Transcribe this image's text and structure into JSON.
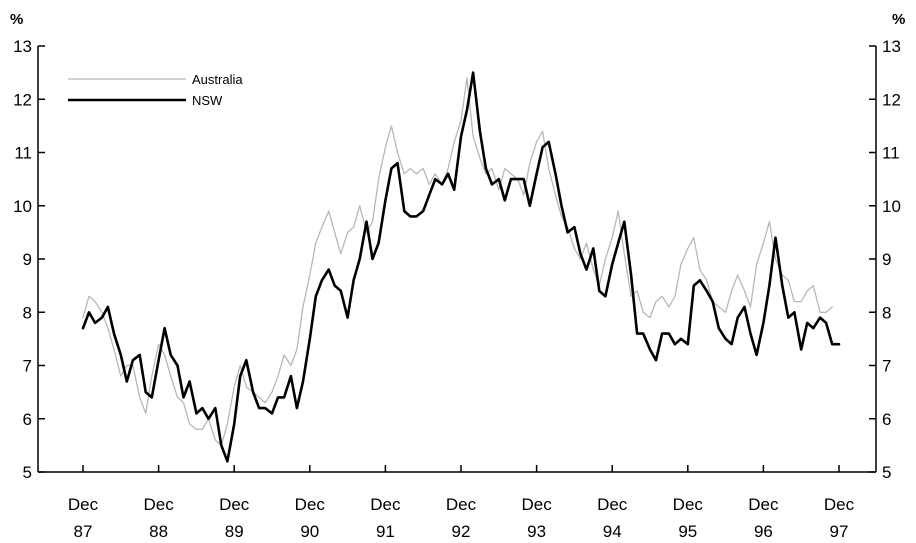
{
  "chart_data": {
    "type": "line",
    "title": "",
    "xlabel": "",
    "ylabel": "",
    "y_unit_left": "%",
    "y_unit_right": "%",
    "ylim": [
      5,
      13
    ],
    "y_ticks": [
      5,
      6,
      7,
      8,
      9,
      10,
      11,
      12,
      13
    ],
    "x_ticks": [
      {
        "month": "Dec",
        "year": "87",
        "x": 1987.92
      },
      {
        "month": "Dec",
        "year": "88",
        "x": 1988.92
      },
      {
        "month": "Dec",
        "year": "89",
        "x": 1989.92
      },
      {
        "month": "Dec",
        "year": "90",
        "x": 1990.92
      },
      {
        "month": "Dec",
        "year": "91",
        "x": 1991.92
      },
      {
        "month": "Dec",
        "year": "92",
        "x": 1992.92
      },
      {
        "month": "Dec",
        "year": "93",
        "x": 1993.92
      },
      {
        "month": "Dec",
        "year": "94",
        "x": 1994.92
      },
      {
        "month": "Dec",
        "year": "95",
        "x": 1995.92
      },
      {
        "month": "Dec",
        "year": "96",
        "x": 1996.92
      },
      {
        "month": "Dec",
        "year": "97",
        "x": 1997.92
      }
    ],
    "xlim": [
      1987.5,
      1998.3
    ],
    "grid": false,
    "legend_position": "top-left",
    "series": [
      {
        "name": "Australia",
        "color": "#b8b8b8",
        "points": [
          [
            1987.92,
            7.9
          ],
          [
            1988.0,
            8.3
          ],
          [
            1988.08,
            8.2
          ],
          [
            1988.17,
            8.0
          ],
          [
            1988.25,
            7.7
          ],
          [
            1988.33,
            7.3
          ],
          [
            1988.42,
            6.8
          ],
          [
            1988.5,
            7.0
          ],
          [
            1988.58,
            7.0
          ],
          [
            1988.67,
            6.4
          ],
          [
            1988.75,
            6.1
          ],
          [
            1988.83,
            6.8
          ],
          [
            1988.92,
            7.4
          ],
          [
            1989.0,
            7.2
          ],
          [
            1989.08,
            6.8
          ],
          [
            1989.17,
            6.4
          ],
          [
            1989.25,
            6.3
          ],
          [
            1989.33,
            5.9
          ],
          [
            1989.42,
            5.8
          ],
          [
            1989.5,
            5.8
          ],
          [
            1989.58,
            6.0
          ],
          [
            1989.67,
            5.6
          ],
          [
            1989.75,
            5.5
          ],
          [
            1989.83,
            5.9
          ],
          [
            1989.92,
            6.6
          ],
          [
            1990.0,
            7.0
          ],
          [
            1990.08,
            6.6
          ],
          [
            1990.17,
            6.5
          ],
          [
            1990.25,
            6.4
          ],
          [
            1990.33,
            6.3
          ],
          [
            1990.42,
            6.5
          ],
          [
            1990.5,
            6.8
          ],
          [
            1990.58,
            7.2
          ],
          [
            1990.67,
            7.0
          ],
          [
            1990.75,
            7.3
          ],
          [
            1990.83,
            8.1
          ],
          [
            1990.92,
            8.7
          ],
          [
            1991.0,
            9.3
          ],
          [
            1991.08,
            9.6
          ],
          [
            1991.17,
            9.9
          ],
          [
            1991.25,
            9.5
          ],
          [
            1991.33,
            9.1
          ],
          [
            1991.42,
            9.5
          ],
          [
            1991.5,
            9.6
          ],
          [
            1991.58,
            10.0
          ],
          [
            1991.67,
            9.5
          ],
          [
            1991.75,
            9.7
          ],
          [
            1991.83,
            10.5
          ],
          [
            1991.92,
            11.1
          ],
          [
            1992.0,
            11.5
          ],
          [
            1992.08,
            11.0
          ],
          [
            1992.17,
            10.6
          ],
          [
            1992.25,
            10.7
          ],
          [
            1992.33,
            10.6
          ],
          [
            1992.42,
            10.7
          ],
          [
            1992.5,
            10.4
          ],
          [
            1992.58,
            10.6
          ],
          [
            1992.67,
            10.4
          ],
          [
            1992.75,
            10.7
          ],
          [
            1992.83,
            11.2
          ],
          [
            1992.92,
            11.6
          ],
          [
            1993.0,
            12.4
          ],
          [
            1993.08,
            11.3
          ],
          [
            1993.17,
            10.9
          ],
          [
            1993.25,
            10.6
          ],
          [
            1993.33,
            10.7
          ],
          [
            1993.42,
            10.3
          ],
          [
            1993.5,
            10.7
          ],
          [
            1993.58,
            10.6
          ],
          [
            1993.67,
            10.5
          ],
          [
            1993.75,
            10.2
          ],
          [
            1993.83,
            10.8
          ],
          [
            1993.92,
            11.2
          ],
          [
            1994.0,
            11.4
          ],
          [
            1994.08,
            10.7
          ],
          [
            1994.17,
            10.2
          ],
          [
            1994.25,
            9.8
          ],
          [
            1994.33,
            9.6
          ],
          [
            1994.42,
            9.2
          ],
          [
            1994.5,
            9.0
          ],
          [
            1994.58,
            9.3
          ],
          [
            1994.67,
            8.8
          ],
          [
            1994.75,
            8.5
          ],
          [
            1994.83,
            9.0
          ],
          [
            1994.92,
            9.4
          ],
          [
            1995.0,
            9.9
          ],
          [
            1995.08,
            9.1
          ],
          [
            1995.17,
            8.3
          ],
          [
            1995.25,
            8.4
          ],
          [
            1995.33,
            8.0
          ],
          [
            1995.42,
            7.9
          ],
          [
            1995.5,
            8.2
          ],
          [
            1995.58,
            8.3
          ],
          [
            1995.67,
            8.1
          ],
          [
            1995.75,
            8.3
          ],
          [
            1995.83,
            8.9
          ],
          [
            1995.92,
            9.2
          ],
          [
            1996.0,
            9.4
          ],
          [
            1996.08,
            8.8
          ],
          [
            1996.17,
            8.6
          ],
          [
            1996.25,
            8.2
          ],
          [
            1996.33,
            8.1
          ],
          [
            1996.42,
            8.0
          ],
          [
            1996.5,
            8.4
          ],
          [
            1996.58,
            8.7
          ],
          [
            1996.67,
            8.4
          ],
          [
            1996.75,
            8.1
          ],
          [
            1996.83,
            8.9
          ],
          [
            1996.92,
            9.3
          ],
          [
            1997.0,
            9.7
          ],
          [
            1997.08,
            9.0
          ],
          [
            1997.17,
            8.7
          ],
          [
            1997.25,
            8.6
          ],
          [
            1997.33,
            8.2
          ],
          [
            1997.42,
            8.2
          ],
          [
            1997.5,
            8.4
          ],
          [
            1997.58,
            8.5
          ],
          [
            1997.67,
            8.0
          ],
          [
            1997.75,
            8.0
          ],
          [
            1997.83,
            8.1
          ]
        ]
      },
      {
        "name": "NSW",
        "color": "#000000",
        "points": [
          [
            1987.92,
            7.7
          ],
          [
            1988.0,
            8.0
          ],
          [
            1988.08,
            7.8
          ],
          [
            1988.17,
            7.9
          ],
          [
            1988.25,
            8.1
          ],
          [
            1988.33,
            7.6
          ],
          [
            1988.42,
            7.2
          ],
          [
            1988.5,
            6.7
          ],
          [
            1988.58,
            7.1
          ],
          [
            1988.67,
            7.2
          ],
          [
            1988.75,
            6.5
          ],
          [
            1988.83,
            6.4
          ],
          [
            1988.92,
            7.1
          ],
          [
            1989.0,
            7.7
          ],
          [
            1989.08,
            7.2
          ],
          [
            1989.17,
            7.0
          ],
          [
            1989.25,
            6.4
          ],
          [
            1989.33,
            6.7
          ],
          [
            1989.42,
            6.1
          ],
          [
            1989.5,
            6.2
          ],
          [
            1989.58,
            6.0
          ],
          [
            1989.67,
            6.2
          ],
          [
            1989.75,
            5.5
          ],
          [
            1989.83,
            5.2
          ],
          [
            1989.92,
            5.9
          ],
          [
            1990.0,
            6.8
          ],
          [
            1990.08,
            7.1
          ],
          [
            1990.17,
            6.5
          ],
          [
            1990.25,
            6.2
          ],
          [
            1990.33,
            6.2
          ],
          [
            1990.42,
            6.1
          ],
          [
            1990.5,
            6.4
          ],
          [
            1990.58,
            6.4
          ],
          [
            1990.67,
            6.8
          ],
          [
            1990.75,
            6.2
          ],
          [
            1990.83,
            6.7
          ],
          [
            1990.92,
            7.5
          ],
          [
            1991.0,
            8.3
          ],
          [
            1991.08,
            8.6
          ],
          [
            1991.17,
            8.8
          ],
          [
            1991.25,
            8.5
          ],
          [
            1991.33,
            8.4
          ],
          [
            1991.42,
            7.9
          ],
          [
            1991.5,
            8.6
          ],
          [
            1991.58,
            9.0
          ],
          [
            1991.67,
            9.7
          ],
          [
            1991.75,
            9.0
          ],
          [
            1991.83,
            9.3
          ],
          [
            1991.92,
            10.1
          ],
          [
            1992.0,
            10.7
          ],
          [
            1992.08,
            10.8
          ],
          [
            1992.17,
            9.9
          ],
          [
            1992.25,
            9.8
          ],
          [
            1992.33,
            9.8
          ],
          [
            1992.42,
            9.9
          ],
          [
            1992.5,
            10.2
          ],
          [
            1992.58,
            10.5
          ],
          [
            1992.67,
            10.4
          ],
          [
            1992.75,
            10.6
          ],
          [
            1992.83,
            10.3
          ],
          [
            1992.92,
            11.3
          ],
          [
            1993.0,
            11.8
          ],
          [
            1993.08,
            12.5
          ],
          [
            1993.17,
            11.4
          ],
          [
            1993.25,
            10.7
          ],
          [
            1993.33,
            10.4
          ],
          [
            1993.42,
            10.5
          ],
          [
            1993.5,
            10.1
          ],
          [
            1993.58,
            10.5
          ],
          [
            1993.67,
            10.5
          ],
          [
            1993.75,
            10.5
          ],
          [
            1993.83,
            10.0
          ],
          [
            1993.92,
            10.6
          ],
          [
            1994.0,
            11.1
          ],
          [
            1994.08,
            11.2
          ],
          [
            1994.17,
            10.6
          ],
          [
            1994.25,
            10.0
          ],
          [
            1994.33,
            9.5
          ],
          [
            1994.42,
            9.6
          ],
          [
            1994.5,
            9.1
          ],
          [
            1994.58,
            8.8
          ],
          [
            1994.67,
            9.2
          ],
          [
            1994.75,
            8.4
          ],
          [
            1994.83,
            8.3
          ],
          [
            1994.92,
            8.9
          ],
          [
            1995.0,
            9.3
          ],
          [
            1995.08,
            9.7
          ],
          [
            1995.17,
            8.7
          ],
          [
            1995.25,
            7.6
          ],
          [
            1995.33,
            7.6
          ],
          [
            1995.42,
            7.3
          ],
          [
            1995.5,
            7.1
          ],
          [
            1995.58,
            7.6
          ],
          [
            1995.67,
            7.6
          ],
          [
            1995.75,
            7.4
          ],
          [
            1995.83,
            7.5
          ],
          [
            1995.92,
            7.4
          ],
          [
            1996.0,
            8.5
          ],
          [
            1996.08,
            8.6
          ],
          [
            1996.17,
            8.4
          ],
          [
            1996.25,
            8.2
          ],
          [
            1996.33,
            7.7
          ],
          [
            1996.42,
            7.5
          ],
          [
            1996.5,
            7.4
          ],
          [
            1996.58,
            7.9
          ],
          [
            1996.67,
            8.1
          ],
          [
            1996.75,
            7.6
          ],
          [
            1996.83,
            7.2
          ],
          [
            1996.92,
            7.8
          ],
          [
            1997.0,
            8.5
          ],
          [
            1997.08,
            9.4
          ],
          [
            1997.17,
            8.5
          ],
          [
            1997.25,
            7.9
          ],
          [
            1997.33,
            8.0
          ],
          [
            1997.42,
            7.3
          ],
          [
            1997.5,
            7.8
          ],
          [
            1997.58,
            7.7
          ],
          [
            1997.67,
            7.9
          ],
          [
            1997.75,
            7.8
          ],
          [
            1997.83,
            7.4
          ],
          [
            1997.92,
            7.4
          ]
        ]
      }
    ]
  }
}
